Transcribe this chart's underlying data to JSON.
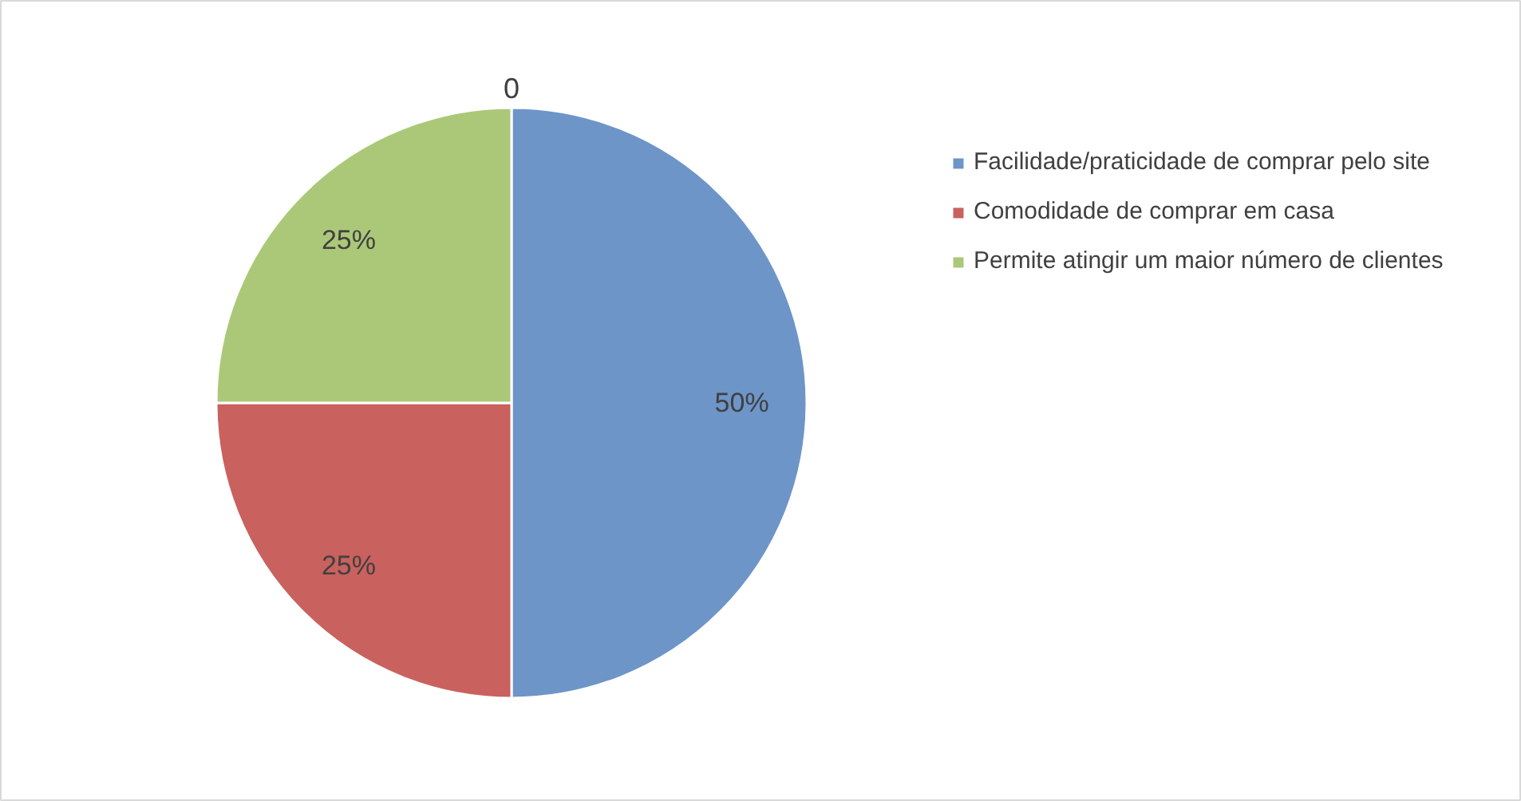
{
  "chart_data": {
    "type": "pie",
    "title": "0",
    "categories": [
      "Facilidade/praticidade de comprar pelo site",
      "Comodidade de comprar em casa",
      "Permite atingir um maior número de clientes"
    ],
    "values": [
      50,
      25,
      25
    ],
    "colors": [
      "#6d95c8",
      "#c9615e",
      "#abc878"
    ],
    "value_labels": [
      "50%",
      "25%",
      "25%"
    ],
    "legend": "right"
  }
}
